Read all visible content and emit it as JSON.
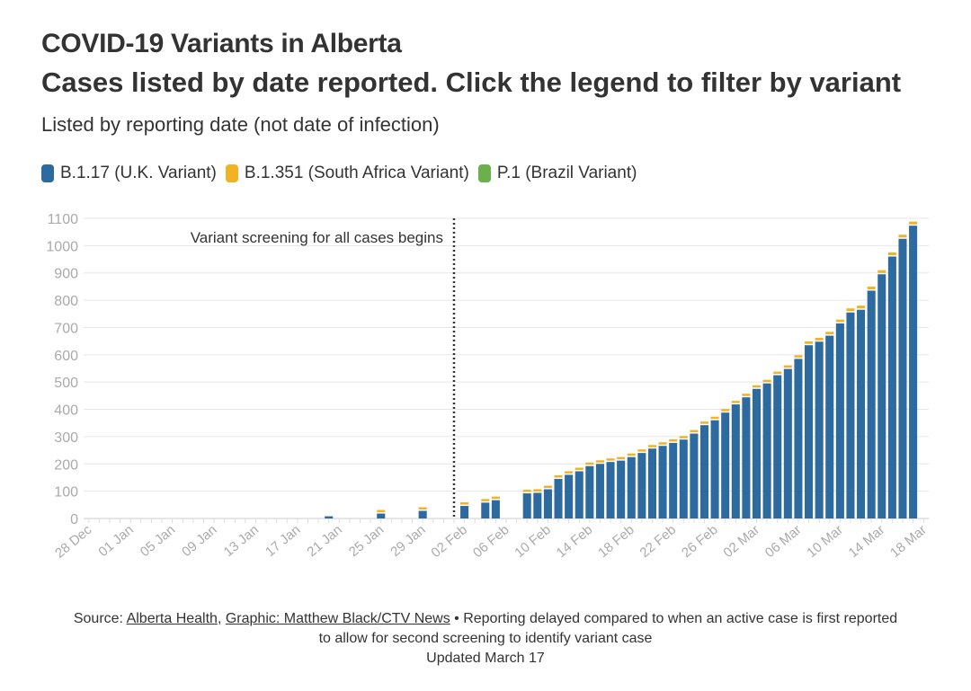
{
  "header": {
    "title": "COVID-19 Variants in Alberta",
    "subtitle": "Cases listed by date reported. Click the legend to filter by variant",
    "note": "Listed by reporting date (not date of infection)"
  },
  "footer": {
    "source_prefix": "Source: ",
    "source_link": "Alberta Health",
    "separator": ", ",
    "graphic_link": "Graphic: Matthew Black/CTV News",
    "bullet": " • ",
    "note_line1": "Reporting delayed compared to when an active case is first reported",
    "note_line2": "to allow for second screening to identify variant case",
    "updated": "Updated March 17"
  },
  "chart_data": {
    "type": "bar",
    "stacked": true,
    "x_start": "2020-12-28",
    "x_end": "2021-03-18",
    "x_tick_labels": [
      "28 Dec",
      "01 Jan",
      "05 Jan",
      "09 Jan",
      "13 Jan",
      "17 Jan",
      "21 Jan",
      "25 Jan",
      "29 Jan",
      "02 Feb",
      "06 Feb",
      "10 Feb",
      "14 Feb",
      "18 Feb",
      "22 Feb",
      "26 Feb",
      "02 Mar",
      "06 Mar",
      "10 Mar",
      "14 Mar",
      "18 Mar"
    ],
    "ylim": [
      0,
      1100
    ],
    "y_ticks": [
      0,
      100,
      200,
      300,
      400,
      500,
      600,
      700,
      800,
      900,
      1000,
      1100
    ],
    "grid": true,
    "legend_position": "top-left",
    "annotation": {
      "date": "2021-02-01",
      "text": "Variant screening for all cases begins",
      "style": "dotted-vertical-line"
    },
    "colors": {
      "B.1.17 (U.K. Variant)": "#2d6a9f",
      "B.1.351 (South Africa Variant)": "#f0b323",
      "P.1 (Brazil Variant)": "#6ab04c"
    },
    "series": [
      {
        "name": "B.1.17 (U.K. Variant)",
        "points": [
          [
            "2021-01-20",
            8
          ],
          [
            "2021-01-25",
            18
          ],
          [
            "2021-01-29",
            28
          ],
          [
            "2021-02-02",
            46
          ],
          [
            "2021-02-04",
            58
          ],
          [
            "2021-02-05",
            67
          ],
          [
            "2021-02-08",
            92
          ],
          [
            "2021-02-09",
            94
          ],
          [
            "2021-02-10",
            107
          ],
          [
            "2021-02-11",
            145
          ],
          [
            "2021-02-12",
            160
          ],
          [
            "2021-02-13",
            173
          ],
          [
            "2021-02-14",
            192
          ],
          [
            "2021-02-15",
            200
          ],
          [
            "2021-02-16",
            207
          ],
          [
            "2021-02-17",
            212
          ],
          [
            "2021-02-18",
            225
          ],
          [
            "2021-02-19",
            240
          ],
          [
            "2021-02-20",
            256
          ],
          [
            "2021-02-21",
            266
          ],
          [
            "2021-02-22",
            277
          ],
          [
            "2021-02-23",
            289
          ],
          [
            "2021-02-24",
            311
          ],
          [
            "2021-02-25",
            342
          ],
          [
            "2021-02-26",
            360
          ],
          [
            "2021-02-27",
            388
          ],
          [
            "2021-02-28",
            418
          ],
          [
            "2021-03-01",
            444
          ],
          [
            "2021-03-02",
            475
          ],
          [
            "2021-03-03",
            495
          ],
          [
            "2021-03-04",
            525
          ],
          [
            "2021-03-05",
            548
          ],
          [
            "2021-03-06",
            585
          ],
          [
            "2021-03-07",
            635
          ],
          [
            "2021-03-08",
            648
          ],
          [
            "2021-03-09",
            670
          ],
          [
            "2021-03-10",
            715
          ],
          [
            "2021-03-11",
            755
          ],
          [
            "2021-03-12",
            765
          ],
          [
            "2021-03-13",
            835
          ],
          [
            "2021-03-14",
            895
          ],
          [
            "2021-03-15",
            960
          ],
          [
            "2021-03-16",
            1025
          ],
          [
            "2021-03-17",
            1073
          ]
        ]
      },
      {
        "name": "B.1.351 (South Africa Variant)",
        "points": [
          [
            "2021-01-25",
            2
          ],
          [
            "2021-01-29",
            2
          ],
          [
            "2021-02-02",
            4
          ],
          [
            "2021-02-04",
            4
          ],
          [
            "2021-02-05",
            5
          ],
          [
            "2021-02-08",
            3
          ],
          [
            "2021-02-09",
            4
          ],
          [
            "2021-02-10",
            4
          ],
          [
            "2021-02-11",
            6
          ],
          [
            "2021-02-12",
            5
          ],
          [
            "2021-02-13",
            5
          ],
          [
            "2021-02-14",
            6
          ],
          [
            "2021-02-15",
            5
          ],
          [
            "2021-02-16",
            5
          ],
          [
            "2021-02-17",
            5
          ],
          [
            "2021-02-18",
            6
          ],
          [
            "2021-02-19",
            5
          ],
          [
            "2021-02-20",
            5
          ],
          [
            "2021-02-21",
            6
          ],
          [
            "2021-02-22",
            6
          ],
          [
            "2021-02-23",
            6
          ],
          [
            "2021-02-24",
            6
          ],
          [
            "2021-02-25",
            7
          ],
          [
            "2021-02-26",
            7
          ],
          [
            "2021-02-27",
            7
          ],
          [
            "2021-02-28",
            7
          ],
          [
            "2021-03-01",
            7
          ],
          [
            "2021-03-02",
            7
          ],
          [
            "2021-03-03",
            7
          ],
          [
            "2021-03-04",
            7
          ],
          [
            "2021-03-05",
            8
          ],
          [
            "2021-03-06",
            8
          ],
          [
            "2021-03-07",
            9
          ],
          [
            "2021-03-08",
            9
          ],
          [
            "2021-03-09",
            9
          ],
          [
            "2021-03-10",
            9
          ],
          [
            "2021-03-11",
            10
          ],
          [
            "2021-03-12",
            10
          ],
          [
            "2021-03-13",
            10
          ],
          [
            "2021-03-14",
            10
          ],
          [
            "2021-03-15",
            10
          ],
          [
            "2021-03-16",
            10
          ],
          [
            "2021-03-17",
            10
          ]
        ]
      },
      {
        "name": "P.1 (Brazil Variant)",
        "points": []
      }
    ]
  }
}
